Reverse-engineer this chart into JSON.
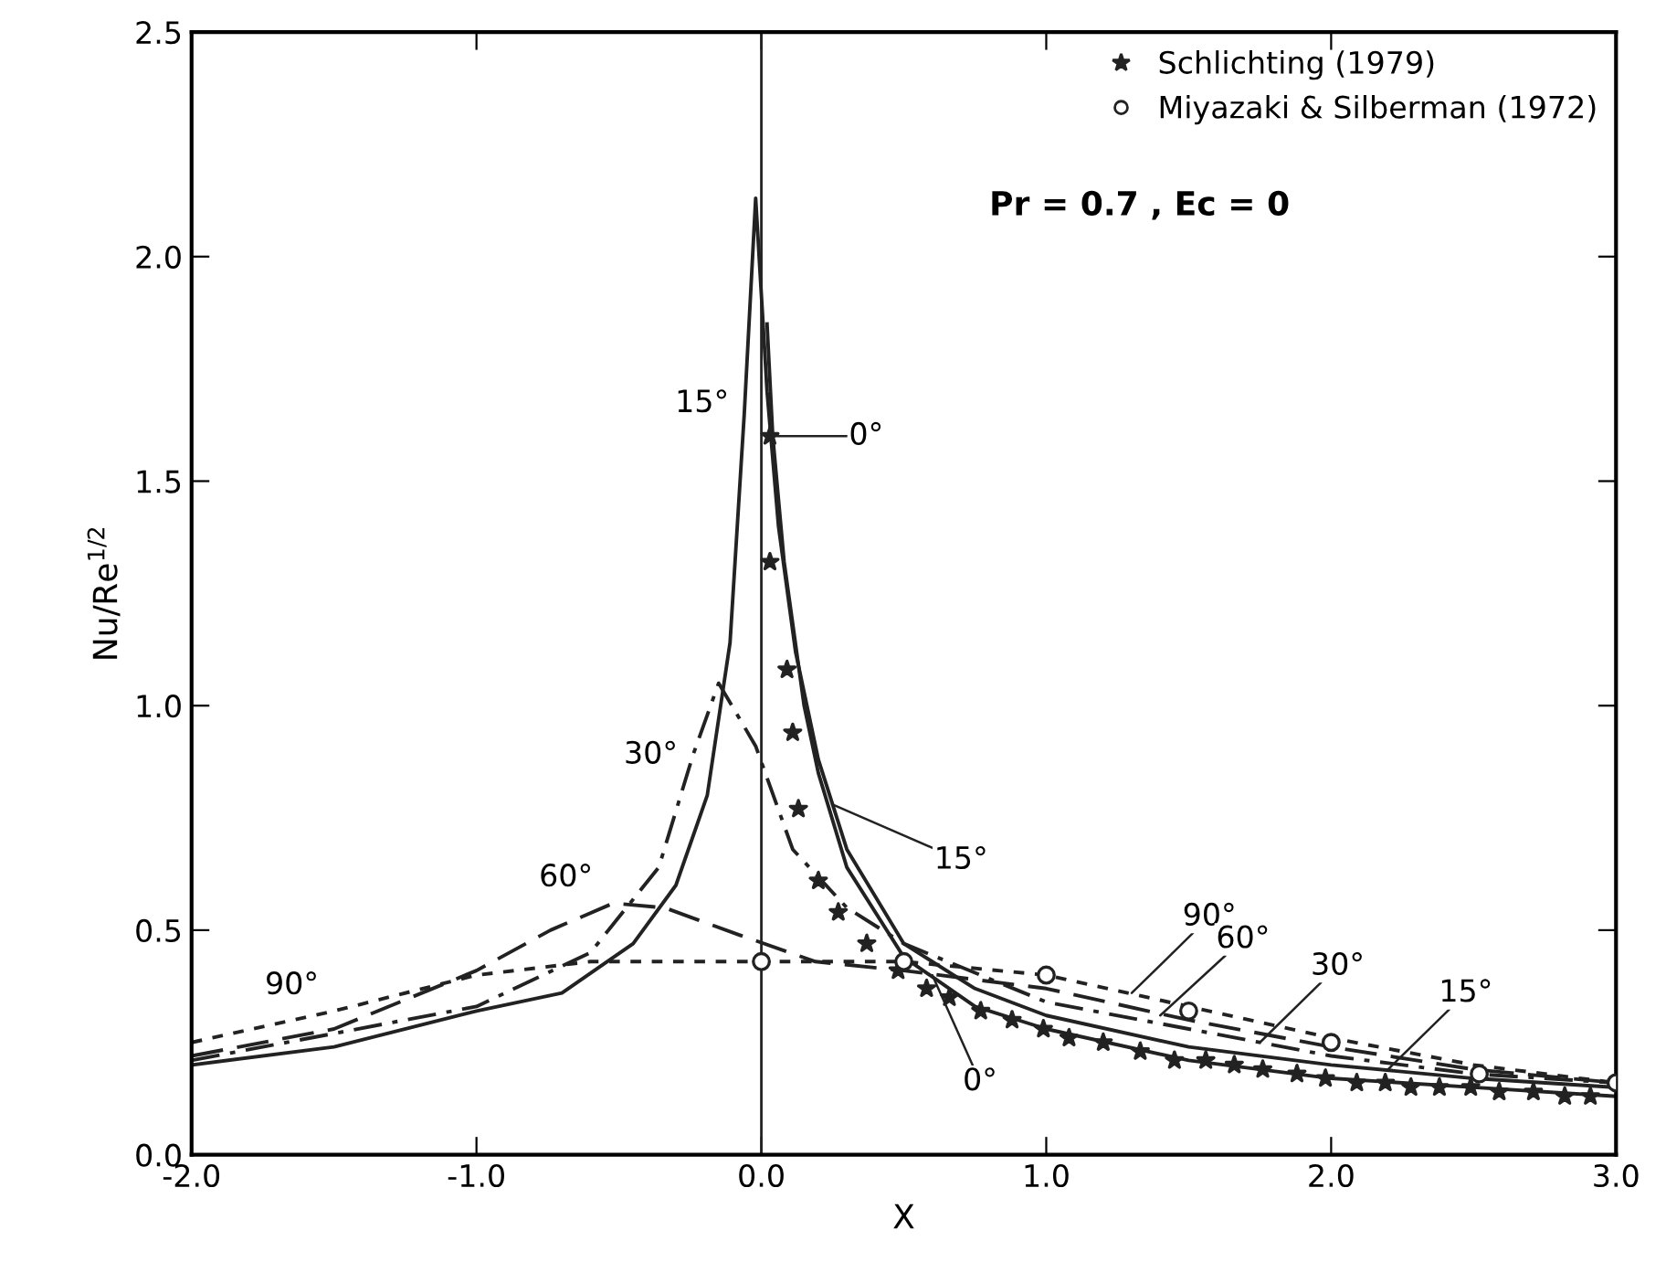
{
  "chart_data": {
    "type": "line",
    "xlabel": "X",
    "ylabel": "Nu/Re$^{1/2}$",
    "xlim": [
      -2.0,
      3.0
    ],
    "ylim": [
      0.0,
      2.5
    ],
    "xticks": [
      {
        "value": -2.0,
        "label": "-2.0"
      },
      {
        "value": -1.0,
        "label": "-1.0"
      },
      {
        "value": 0.0,
        "label": "0.0"
      },
      {
        "value": 1.0,
        "label": "1.0"
      },
      {
        "value": 2.0,
        "label": "2.0"
      },
      {
        "value": 3.0,
        "label": "3.0"
      }
    ],
    "yticks": [
      {
        "value": 0.0,
        "label": "0.0"
      },
      {
        "value": 0.5,
        "label": "0.5"
      },
      {
        "value": 1.0,
        "label": "1.0"
      },
      {
        "value": 1.5,
        "label": "1.5"
      },
      {
        "value": 2.0,
        "label": "2.0"
      },
      {
        "value": 2.5,
        "label": "2.5"
      }
    ],
    "grid": false,
    "legend": "top right",
    "ref_lines": [
      {
        "axis": "x",
        "value": 0.0,
        "color": "#222222"
      }
    ],
    "series": [
      {
        "color": "#222222",
        "line_style": "solid",
        "x": [
          0.02,
          0.04,
          0.08,
          0.15,
          0.2,
          0.3,
          0.5,
          0.75,
          1.0,
          1.5,
          2.0,
          2.5,
          3.0
        ],
        "values": [
          1.85,
          1.6,
          1.32,
          1.0,
          0.85,
          0.64,
          0.44,
          0.33,
          0.28,
          0.21,
          0.17,
          0.15,
          0.13
        ]
      },
      {
        "color": "#222222",
        "line_style": "solid",
        "x": [
          -2.0,
          -1.5,
          -1.0,
          -0.7,
          -0.45,
          -0.3,
          -0.19,
          -0.11,
          -0.06,
          -0.02,
          0.02,
          0.06,
          0.12,
          0.2,
          0.3,
          0.5,
          0.75,
          1.0,
          1.5,
          2.0,
          2.5,
          3.0
        ],
        "values": [
          0.2,
          0.24,
          0.32,
          0.36,
          0.47,
          0.6,
          0.8,
          1.14,
          1.65,
          2.13,
          1.7,
          1.4,
          1.12,
          0.88,
          0.68,
          0.47,
          0.37,
          0.31,
          0.24,
          0.2,
          0.17,
          0.15
        ]
      },
      {
        "color": "#222222",
        "line_style": "dashdot",
        "x": [
          -2.0,
          -1.0,
          -0.6,
          -0.36,
          -0.24,
          -0.15,
          -0.02,
          0.11,
          0.3,
          0.5,
          1.0,
          1.5,
          2.0,
          2.5,
          3.0
        ],
        "values": [
          0.21,
          0.33,
          0.45,
          0.64,
          0.89,
          1.05,
          0.91,
          0.68,
          0.55,
          0.47,
          0.34,
          0.28,
          0.22,
          0.18,
          0.16
        ]
      },
      {
        "color": "#222222",
        "line_style": "dashed",
        "x": [
          -2.0,
          -1.5,
          -1.0,
          -0.74,
          -0.52,
          -0.34,
          -0.08,
          0.19,
          0.5,
          1.0,
          1.5,
          2.0,
          2.5,
          3.0
        ],
        "values": [
          0.22,
          0.28,
          0.41,
          0.5,
          0.56,
          0.55,
          0.49,
          0.43,
          0.41,
          0.37,
          0.3,
          0.24,
          0.19,
          0.16
        ]
      },
      {
        "color": "#222222",
        "line_style": "dotted",
        "x": [
          -2.0,
          -1.5,
          -1.0,
          -0.6,
          0.0,
          0.5,
          1.0,
          1.5,
          2.0,
          2.5,
          3.0
        ],
        "values": [
          0.25,
          0.32,
          0.4,
          0.43,
          0.43,
          0.43,
          0.4,
          0.33,
          0.26,
          0.2,
          0.16
        ]
      },
      {
        "type": "scatter",
        "name": "Schlichting (1979)",
        "color": "#222222",
        "marker": "star",
        "x": [
          0.03,
          0.03,
          0.09,
          0.11,
          0.13,
          0.2,
          0.27,
          0.37,
          0.48,
          0.58,
          0.66,
          0.77,
          0.88,
          0.99,
          1.08,
          1.2,
          1.33,
          1.45,
          1.56,
          1.66,
          1.76,
          1.88,
          1.98,
          2.09,
          2.19,
          2.28,
          2.38,
          2.49,
          2.59,
          2.71,
          2.82,
          2.91
        ],
        "values": [
          1.6,
          1.32,
          1.08,
          0.94,
          0.77,
          0.61,
          0.54,
          0.47,
          0.41,
          0.37,
          0.35,
          0.32,
          0.3,
          0.28,
          0.26,
          0.25,
          0.23,
          0.21,
          0.21,
          0.2,
          0.19,
          0.18,
          0.17,
          0.16,
          0.16,
          0.15,
          0.15,
          0.15,
          0.14,
          0.14,
          0.13,
          0.13
        ]
      },
      {
        "type": "scatter",
        "name": "Miyazaki & Silberman (1972)",
        "color": "#222222",
        "marker": "circle",
        "x": [
          0.0,
          0.5,
          1.0,
          1.5,
          2.0,
          2.52,
          3.0
        ],
        "values": [
          0.43,
          0.43,
          0.4,
          0.32,
          0.25,
          0.18,
          0.16
        ]
      }
    ],
    "annotations": [
      "Pr = 0.7 , Ec = 0",
      {
        "text": "0°",
        "x": 0.04,
        "y": 1.6
      },
      {
        "text": "15°",
        "x": 0.25,
        "y": 0.78
      },
      {
        "text": "90°",
        "x": 1.3,
        "y": 0.36
      },
      {
        "text": "60°",
        "x": 1.4,
        "y": 0.31
      },
      {
        "text": "30°",
        "x": 1.75,
        "y": 0.25
      },
      {
        "text": "15°",
        "x": 2.2,
        "y": 0.19
      },
      {
        "text": "0°",
        "x": 0.6,
        "y": 0.4
      },
      {
        "text": "15°",
        "x": -0.06,
        "y": 1.65
      },
      {
        "text": "30°",
        "x": -0.24,
        "y": 0.89
      },
      {
        "text": "60°",
        "x": -0.52,
        "y": 0.56
      },
      {
        "text": "90°",
        "x": -1.5,
        "y": 0.32
      }
    ]
  }
}
